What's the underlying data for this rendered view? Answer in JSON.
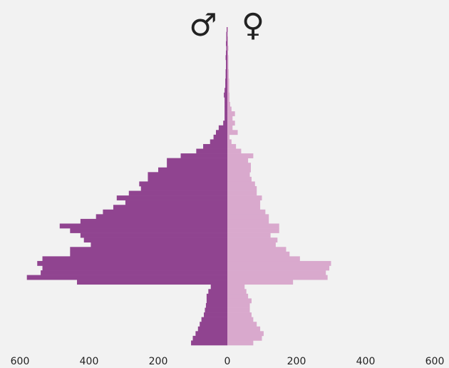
{
  "chart_data": {
    "type": "pyramid",
    "series": [
      {
        "name": "♂",
        "color": "#904490",
        "values": [
          -105,
          -100,
          -92,
          -85,
          -80,
          -75,
          -68,
          -65,
          -62,
          -60,
          -60,
          -55,
          -48,
          -435,
          -580,
          -540,
          -535,
          -550,
          -535,
          -455,
          -455,
          -395,
          -415,
          -425,
          -455,
          -485,
          -425,
          -380,
          -360,
          -330,
          -295,
          -320,
          -285,
          -250,
          -255,
          -230,
          -230,
          -200,
          -175,
          -175,
          -135,
          -90,
          -70,
          -50,
          -40,
          -33,
          -25,
          -12,
          -8,
          -8,
          -8,
          -8,
          -8,
          -10,
          -8,
          -6,
          -6,
          -5,
          -5,
          -4,
          -4,
          -5,
          -4,
          -3,
          -4,
          -3,
          -3,
          -2
        ]
      },
      {
        "name": "♀",
        "color": "#d9a9cd",
        "values": [
          75,
          100,
          105,
          95,
          85,
          75,
          70,
          65,
          65,
          70,
          60,
          55,
          50,
          190,
          290,
          285,
          295,
          300,
          210,
          180,
          170,
          140,
          145,
          125,
          150,
          150,
          120,
          120,
          110,
          95,
          95,
          100,
          85,
          85,
          80,
          70,
          65,
          68,
          68,
          60,
          75,
          40,
          25,
          12,
          6,
          30,
          15,
          22,
          15,
          22,
          12,
          8,
          6,
          6,
          5,
          5,
          5,
          4,
          4,
          3,
          3,
          3,
          2,
          3,
          2,
          2,
          1,
          2
        ]
      }
    ],
    "xlim": [
      -600,
      600
    ],
    "xticks": [
      {
        "value": -600,
        "label": "600"
      },
      {
        "value": -400,
        "label": "400"
      },
      {
        "value": -200,
        "label": "200"
      },
      0,
      200,
      400,
      600
    ]
  }
}
